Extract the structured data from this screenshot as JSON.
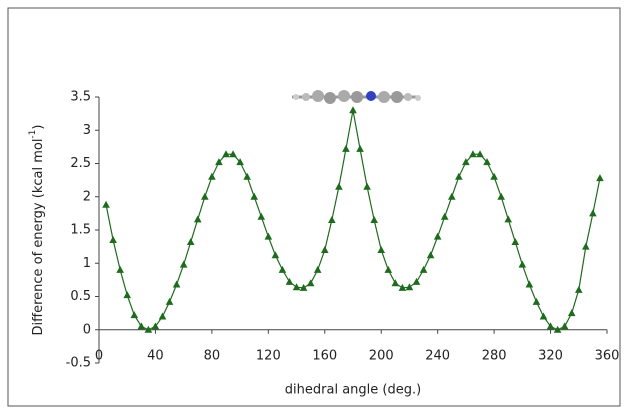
{
  "chart_data": {
    "type": "line",
    "x_label": "dihedral angle (deg.)",
    "y_label": "Difference of energy (kcal mol",
    "y_label_sup": "-1",
    "y_label_end": ")",
    "x": [
      5,
      10,
      15,
      20,
      25,
      30,
      35,
      40,
      45,
      50,
      55,
      60,
      65,
      70,
      75,
      80,
      85,
      90,
      95,
      100,
      105,
      110,
      115,
      120,
      125,
      130,
      135,
      140,
      145,
      150,
      155,
      160,
      165,
      170,
      175,
      180,
      185,
      190,
      195,
      200,
      205,
      210,
      215,
      220,
      225,
      230,
      235,
      240,
      245,
      250,
      255,
      260,
      265,
      270,
      275,
      280,
      285,
      290,
      295,
      300,
      305,
      310,
      315,
      320,
      325,
      330,
      335,
      340,
      345,
      350,
      355
    ],
    "series": [
      {
        "name": "energy",
        "color": "#1e6b1e",
        "values": [
          1.88,
          1.35,
          0.9,
          0.52,
          0.22,
          0.05,
          0,
          0.05,
          0.2,
          0.42,
          0.68,
          0.98,
          1.32,
          1.66,
          2.0,
          2.3,
          2.52,
          2.64,
          2.64,
          2.52,
          2.3,
          2.0,
          1.7,
          1.4,
          1.12,
          0.9,
          0.72,
          0.64,
          0.63,
          0.7,
          0.9,
          1.2,
          1.65,
          2.15,
          2.72,
          3.3,
          2.72,
          2.15,
          1.65,
          1.2,
          0.9,
          0.7,
          0.63,
          0.64,
          0.72,
          0.9,
          1.12,
          1.4,
          1.7,
          2.0,
          2.3,
          2.52,
          2.64,
          2.64,
          2.52,
          2.3,
          2.0,
          1.66,
          1.32,
          0.98,
          0.68,
          0.42,
          0.2,
          0.05,
          0,
          0.05,
          0.25,
          0.6,
          1.25,
          1.75,
          2.28
        ]
      }
    ],
    "xlim": [
      0,
      360
    ],
    "xticks": [
      0,
      40,
      80,
      120,
      160,
      200,
      240,
      280,
      320,
      360
    ],
    "ylim": [
      -0.5,
      3.5
    ],
    "yticks": [
      -0.5,
      0,
      0.5,
      1,
      1.5,
      2,
      2.5,
      3,
      3.5
    ],
    "grid": false,
    "marker": "triangle"
  }
}
